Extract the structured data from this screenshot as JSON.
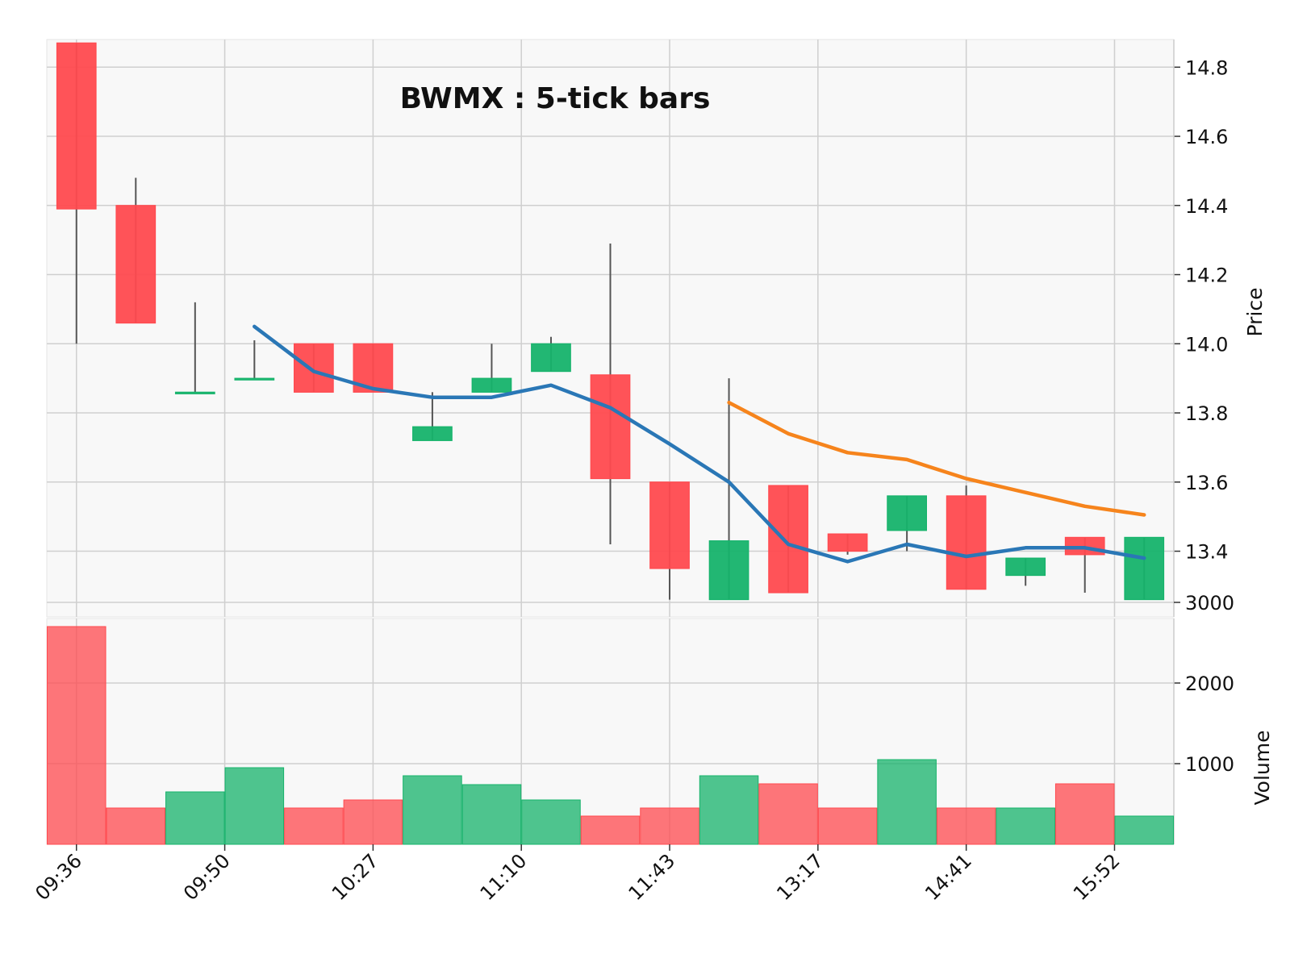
{
  "chart_data": {
    "type": "candlestick",
    "title": "BWMX : 5-tick bars",
    "price_axis": {
      "label": "Price",
      "side": "right",
      "ylim": [
        13.21,
        14.88
      ],
      "ticks": [
        "13.4",
        "13.6",
        "13.8",
        "14.0",
        "14.2",
        "14.4",
        "14.6",
        "14.8"
      ]
    },
    "volume_axis": {
      "label": "Volume",
      "side": "right",
      "ylim": [
        0,
        2800
      ],
      "ticks": [
        "1000",
        "2000",
        "3000"
      ]
    },
    "x_tick_labels": [
      "09:36",
      "09:50",
      "10:27",
      "11:10",
      "11:43",
      "13:17",
      "14:41",
      "15:52"
    ],
    "x_tick_every": 2.5,
    "grid": true,
    "colors": {
      "up": "#16b36b",
      "down": "#ff4a4f",
      "wick": "#555555",
      "ma_short": "#2a77b6",
      "ma_long": "#f6841c",
      "panel_bg": "#f8f8f8",
      "grid": "#cfcfcf"
    },
    "bars": [
      {
        "open": 14.87,
        "high": 14.87,
        "low": 14.0,
        "close": 14.39,
        "volume": 2700
      },
      {
        "open": 14.4,
        "high": 14.48,
        "low": 14.06,
        "close": 14.06,
        "volume": 450
      },
      {
        "open": 13.86,
        "high": 14.12,
        "low": 13.86,
        "close": 13.86,
        "volume": 650
      },
      {
        "open": 13.9,
        "high": 14.01,
        "low": 13.9,
        "close": 13.9,
        "volume": 950
      },
      {
        "open": 14.0,
        "high": 14.0,
        "low": 13.86,
        "close": 13.86,
        "volume": 450
      },
      {
        "open": 14.0,
        "high": 14.0,
        "low": 13.86,
        "close": 13.86,
        "volume": 550
      },
      {
        "open": 13.72,
        "high": 13.86,
        "low": 13.72,
        "close": 13.76,
        "volume": 850
      },
      {
        "open": 13.86,
        "high": 14.0,
        "low": 13.86,
        "close": 13.9,
        "volume": 740
      },
      {
        "open": 13.92,
        "high": 14.02,
        "low": 13.92,
        "close": 14.0,
        "volume": 550
      },
      {
        "open": 13.91,
        "high": 14.29,
        "low": 13.42,
        "close": 13.61,
        "volume": 350
      },
      {
        "open": 13.6,
        "high": 13.6,
        "low": 13.26,
        "close": 13.35,
        "volume": 450
      },
      {
        "open": 13.26,
        "high": 13.9,
        "low": 13.26,
        "close": 13.43,
        "volume": 850
      },
      {
        "open": 13.59,
        "high": 13.59,
        "low": 13.28,
        "close": 13.28,
        "volume": 750
      },
      {
        "open": 13.45,
        "high": 13.45,
        "low": 13.39,
        "close": 13.4,
        "volume": 450
      },
      {
        "open": 13.46,
        "high": 13.56,
        "low": 13.4,
        "close": 13.56,
        "volume": 1050
      },
      {
        "open": 13.56,
        "high": 13.59,
        "low": 13.29,
        "close": 13.29,
        "volume": 450
      },
      {
        "open": 13.33,
        "high": 13.38,
        "low": 13.3,
        "close": 13.38,
        "volume": 450
      },
      {
        "open": 13.44,
        "high": 13.44,
        "low": 13.28,
        "close": 13.39,
        "volume": 750
      },
      {
        "open": 13.26,
        "high": 13.44,
        "low": 13.26,
        "close": 13.44,
        "volume": 350
      }
    ],
    "ma_short": [
      null,
      null,
      null,
      14.05,
      13.92,
      13.87,
      13.845,
      13.845,
      13.88,
      13.815,
      13.71,
      13.6,
      13.42,
      13.37,
      13.42,
      13.385,
      13.41,
      13.41,
      13.38
    ],
    "ma_long": [
      null,
      null,
      null,
      null,
      null,
      null,
      null,
      null,
      null,
      null,
      null,
      13.83,
      13.74,
      13.685,
      13.665,
      13.61,
      13.57,
      13.53,
      13.505
    ]
  }
}
